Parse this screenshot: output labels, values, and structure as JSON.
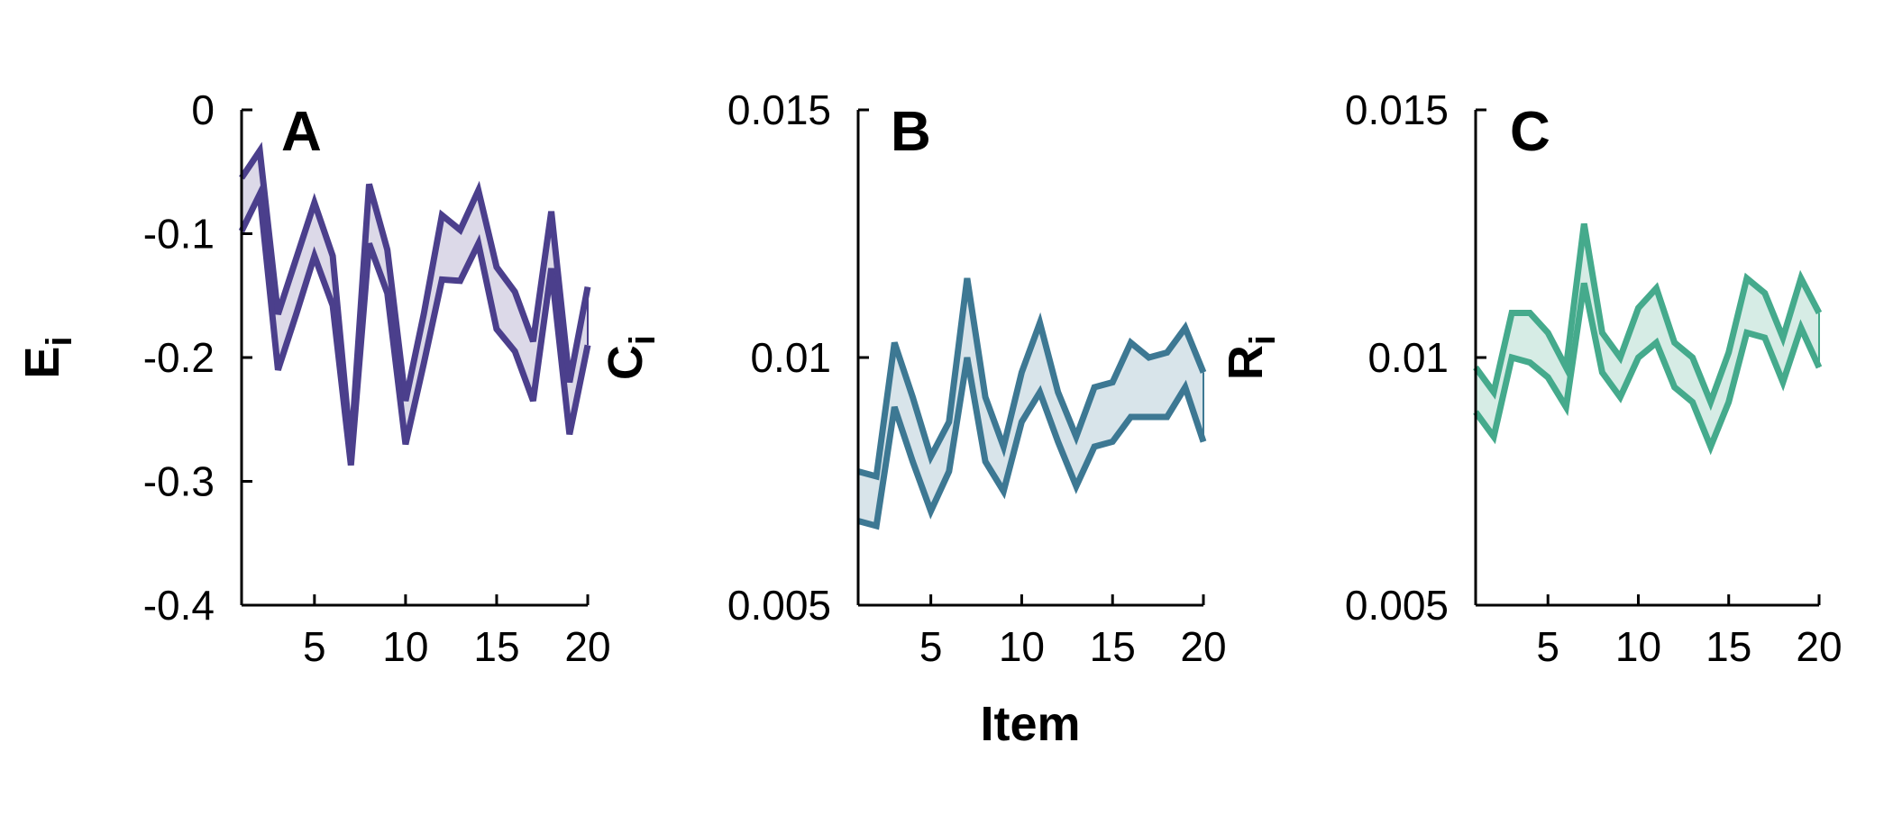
{
  "figure": {
    "x_title": "Item"
  },
  "chart_data": [
    {
      "type": "area",
      "panel": "A",
      "ylabel": "E",
      "ylabel_sub": "i",
      "color": "#4b3f8c",
      "fill": "#dcd9e8",
      "xlim": [
        1,
        20
      ],
      "ylim": [
        -0.4,
        0
      ],
      "xticks": [
        5,
        10,
        15,
        20
      ],
      "xtick_labels": [
        "5",
        "10",
        "15",
        "20"
      ],
      "yticks": [
        0,
        -0.1,
        -0.2,
        -0.3,
        -0.4
      ],
      "ytick_labels": [
        "0",
        "-0.1",
        "-0.2",
        "-0.3",
        "-0.4"
      ],
      "grid": false,
      "x": [
        1,
        2,
        3,
        4,
        5,
        6,
        7,
        8,
        9,
        10,
        11,
        12,
        13,
        14,
        15,
        16,
        17,
        18,
        19,
        20
      ],
      "series": [
        {
          "values": [
            -0.055,
            -0.033,
            -0.165,
            -0.12,
            -0.075,
            -0.118,
            -0.275,
            -0.06,
            -0.113,
            -0.235,
            -0.165,
            -0.085,
            -0.097,
            -0.065,
            -0.127,
            -0.147,
            -0.187,
            -0.082,
            -0.22,
            -0.143
          ]
        },
        {
          "values": [
            -0.098,
            -0.068,
            -0.21,
            -0.165,
            -0.118,
            -0.158,
            -0.287,
            -0.108,
            -0.148,
            -0.27,
            -0.205,
            -0.137,
            -0.138,
            -0.108,
            -0.177,
            -0.195,
            -0.235,
            -0.128,
            -0.262,
            -0.19
          ]
        }
      ]
    },
    {
      "type": "area",
      "panel": "B",
      "ylabel": "C",
      "ylabel_sub": "i",
      "color": "#3d7893",
      "fill": "#d8e4ea",
      "xlim": [
        1,
        20
      ],
      "ylim": [
        0.005,
        0.015
      ],
      "xticks": [
        5,
        10,
        15,
        20
      ],
      "xtick_labels": [
        "5",
        "10",
        "15",
        "20"
      ],
      "yticks": [
        0.015,
        0.01,
        0.005
      ],
      "ytick_labels": [
        "0.015",
        "0.01",
        "0.005"
      ],
      "grid": false,
      "x": [
        1,
        2,
        3,
        4,
        5,
        6,
        7,
        8,
        9,
        10,
        11,
        12,
        13,
        14,
        15,
        16,
        17,
        18,
        19,
        20
      ],
      "series": [
        {
          "values": [
            0.0077,
            0.0076,
            0.0103,
            0.0092,
            0.008,
            0.0087,
            0.0116,
            0.0092,
            0.0082,
            0.0097,
            0.0107,
            0.0093,
            0.0084,
            0.0094,
            0.0095,
            0.0103,
            0.01,
            0.0101,
            0.0106,
            0.0097
          ]
        },
        {
          "values": [
            0.0067,
            0.0066,
            0.009,
            0.0079,
            0.0069,
            0.0077,
            0.01,
            0.0079,
            0.0073,
            0.0087,
            0.0093,
            0.0083,
            0.0074,
            0.0082,
            0.0083,
            0.0088,
            0.0088,
            0.0088,
            0.0094,
            0.0083
          ]
        }
      ]
    },
    {
      "type": "area",
      "panel": "C",
      "ylabel": "R",
      "ylabel_sub": "i",
      "color": "#45aa8c",
      "fill": "#d6ece5",
      "xlim": [
        1,
        20
      ],
      "ylim": [
        0.005,
        0.015
      ],
      "xticks": [
        5,
        10,
        15,
        20
      ],
      "xtick_labels": [
        "5",
        "10",
        "15",
        "20"
      ],
      "yticks": [
        0.015,
        0.01,
        0.005
      ],
      "ytick_labels": [
        "0.015",
        "0.01",
        "0.005"
      ],
      "grid": false,
      "x": [
        1,
        2,
        3,
        4,
        5,
        6,
        7,
        8,
        9,
        10,
        11,
        12,
        13,
        14,
        15,
        16,
        17,
        18,
        19,
        20
      ],
      "series": [
        {
          "values": [
            0.0098,
            0.0093,
            0.0109,
            0.0109,
            0.0105,
            0.0098,
            0.0127,
            0.0105,
            0.01,
            0.011,
            0.0114,
            0.0103,
            0.01,
            0.0091,
            0.0101,
            0.0116,
            0.0113,
            0.0104,
            0.0116,
            0.0109
          ]
        },
        {
          "values": [
            0.0089,
            0.0084,
            0.01,
            0.0099,
            0.0096,
            0.009,
            0.0115,
            0.0097,
            0.0092,
            0.01,
            0.0103,
            0.0094,
            0.0091,
            0.0082,
            0.0091,
            0.0105,
            0.0104,
            0.0095,
            0.0106,
            0.0098
          ]
        }
      ]
    }
  ]
}
